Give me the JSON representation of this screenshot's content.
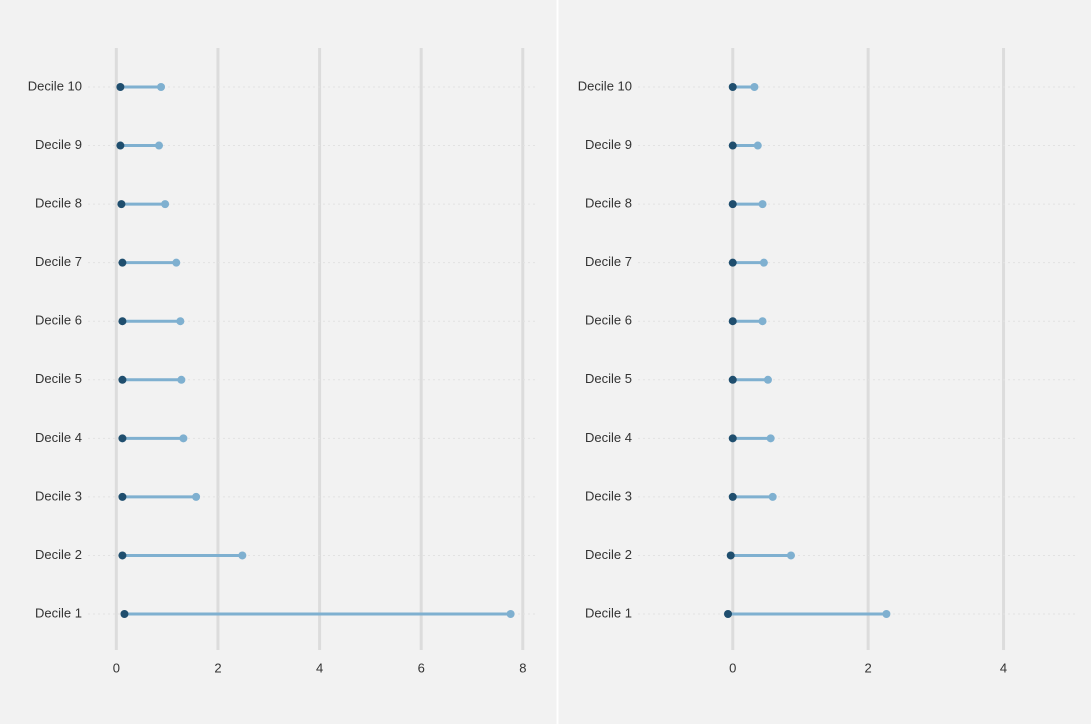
{
  "chart_data": [
    {
      "type": "dumbbell",
      "categories": [
        "Decile 10",
        "Decile 9",
        "Decile 8",
        "Decile 7",
        "Decile 6",
        "Decile 5",
        "Decile 4",
        "Decile 3",
        "Decile 2",
        "Decile 1"
      ],
      "series": [
        {
          "color": "#1f4e6e",
          "values": [
            0.08,
            0.08,
            0.1,
            0.12,
            0.12,
            0.12,
            0.12,
            0.12,
            0.12,
            0.16
          ]
        },
        {
          "color": "#7fb0d0",
          "values": [
            0.88,
            0.84,
            0.96,
            1.18,
            1.26,
            1.28,
            1.32,
            1.57,
            2.48,
            7.76
          ]
        }
      ],
      "xlim": [
        -0.4,
        8.24
      ],
      "xticks": [
        0,
        2,
        4,
        6,
        8
      ],
      "grid": true
    },
    {
      "type": "dumbbell",
      "categories": [
        "Decile 10",
        "Decile 9",
        "Decile 8",
        "Decile 7",
        "Decile 6",
        "Decile 5",
        "Decile 4",
        "Decile 3",
        "Decile 2",
        "Decile 1"
      ],
      "series": [
        {
          "color": "#1f4e6e",
          "values": [
            0,
            0,
            0,
            0,
            0,
            0,
            0,
            0,
            -0.03,
            -0.07
          ]
        },
        {
          "color": "#7fb0d0",
          "values": [
            0.32,
            0.37,
            0.44,
            0.46,
            0.44,
            0.52,
            0.56,
            0.59,
            0.86,
            2.27
          ]
        }
      ],
      "xlim": [
        -1.37,
        5.1
      ],
      "xticks": [
        0,
        2,
        4
      ],
      "grid": true
    }
  ]
}
